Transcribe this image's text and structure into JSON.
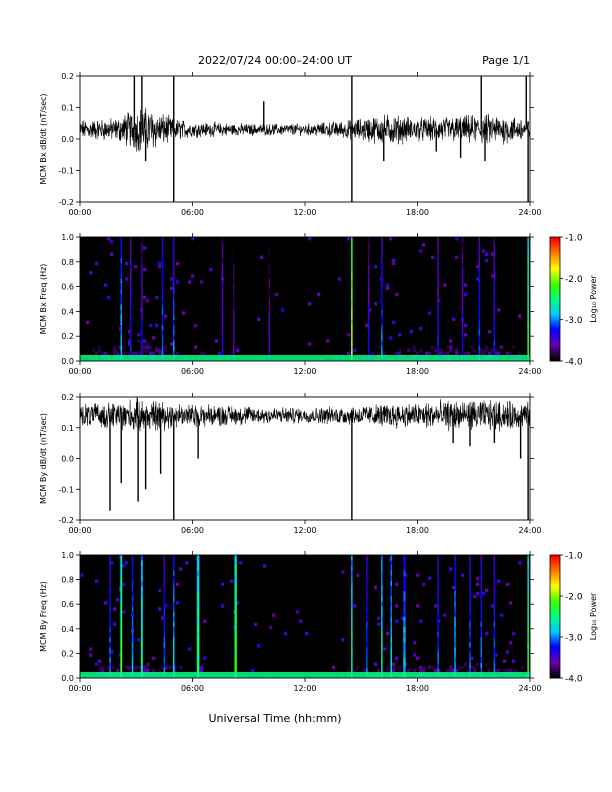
{
  "header": {
    "title": "2022/07/24  00:00–24:00 UT",
    "page": "Page 1/1"
  },
  "footer": {
    "xlabel": "Universal Time (hh:mm)"
  },
  "x_ticks": [
    "00:00",
    "06:00",
    "12:00",
    "18:00",
    "24:00"
  ],
  "colorbar": {
    "label": "Log₁₀ Power",
    "ticks": [
      "-1.0",
      "-2.0",
      "-3.0",
      "-4.0"
    ],
    "range": [
      -4.0,
      -1.0
    ],
    "colors": [
      "#000000",
      "#6a00b0",
      "#0000ff",
      "#00c8ff",
      "#00ff80",
      "#40ff00",
      "#ffff00",
      "#ff8000",
      "#ff0000"
    ]
  },
  "chart_data": [
    {
      "type": "line",
      "ylabel": "MCM Bx dB/dt (nT/sec)",
      "xlim": [
        0,
        24
      ],
      "ylim": [
        -0.2,
        0.2
      ],
      "yticks": [
        "0.2",
        "0.1",
        "0.0",
        "-0.1",
        "-0.2"
      ],
      "baseline": 0.03,
      "noise": [
        [
          0,
          0.025
        ],
        [
          2,
          0.03
        ],
        [
          2.7,
          0.05
        ],
        [
          3.3,
          0.06
        ],
        [
          4,
          0.05
        ],
        [
          5,
          0.03
        ],
        [
          6,
          0.02
        ],
        [
          9,
          0.015
        ],
        [
          12,
          0.015
        ],
        [
          14.5,
          0.025
        ],
        [
          15.5,
          0.035
        ],
        [
          16.5,
          0.04
        ],
        [
          18,
          0.03
        ],
        [
          20,
          0.035
        ],
        [
          22,
          0.04
        ],
        [
          24,
          0.03
        ]
      ],
      "spikes": [
        [
          2.9,
          0.2
        ],
        [
          3.3,
          0.2
        ],
        [
          3.5,
          -0.07
        ],
        [
          5.0,
          0.2
        ],
        [
          5.0,
          -0.2
        ],
        [
          9.8,
          0.12
        ],
        [
          14.5,
          0.2
        ],
        [
          14.5,
          -0.2
        ],
        [
          16.2,
          -0.07
        ],
        [
          19.0,
          -0.04
        ],
        [
          20.3,
          -0.06
        ],
        [
          21.4,
          0.2
        ],
        [
          21.6,
          -0.07
        ],
        [
          23.8,
          0.2
        ],
        [
          23.9,
          -0.2
        ]
      ]
    },
    {
      "type": "heatmap",
      "ylabel": "MCM Bx Freq (Hz)",
      "xlim": [
        0,
        24
      ],
      "ylim": [
        0.0,
        1.0
      ],
      "yticks": [
        "1.0",
        "0.8",
        "0.6",
        "0.4",
        "0.2",
        "0.0"
      ],
      "bands": [
        [
          2.2,
          0.07,
          -2.8
        ],
        [
          2.7,
          0.05,
          -3.2
        ],
        [
          3.3,
          0.06,
          -3.3
        ],
        [
          4.4,
          0.04,
          -3.0
        ],
        [
          5.0,
          0.05,
          -3.0
        ],
        [
          7.6,
          0.04,
          -3.3
        ],
        [
          8.2,
          0.04,
          -3.5
        ],
        [
          10.1,
          0.04,
          -3.5
        ],
        [
          14.5,
          0.06,
          -1.8
        ],
        [
          15.4,
          0.04,
          -3.3
        ],
        [
          16.1,
          0.04,
          -3.0
        ],
        [
          19.1,
          0.04,
          -3.2
        ],
        [
          20.4,
          0.04,
          -3.3
        ],
        [
          21.3,
          0.04,
          -3.1
        ],
        [
          22.1,
          0.04,
          -3.2
        ],
        [
          23.9,
          0.06,
          -2.3
        ]
      ]
    },
    {
      "type": "line",
      "ylabel": "MCM By dB/dt (nT/sec)",
      "xlim": [
        0,
        24
      ],
      "ylim": [
        -0.2,
        0.2
      ],
      "yticks": [
        "0.2",
        "0.1",
        "0.0",
        "-0.1",
        "-0.2"
      ],
      "baseline": 0.14,
      "noise": [
        [
          0,
          0.03
        ],
        [
          2,
          0.035
        ],
        [
          3,
          0.045
        ],
        [
          4,
          0.04
        ],
        [
          5,
          0.035
        ],
        [
          6,
          0.03
        ],
        [
          9,
          0.025
        ],
        [
          12,
          0.02
        ],
        [
          14.5,
          0.025
        ],
        [
          16,
          0.03
        ],
        [
          18,
          0.035
        ],
        [
          20,
          0.04
        ],
        [
          22,
          0.04
        ],
        [
          24,
          0.035
        ]
      ],
      "spikes": [
        [
          1.6,
          -0.17
        ],
        [
          2.2,
          -0.08
        ],
        [
          3.1,
          -0.14
        ],
        [
          3.5,
          -0.1
        ],
        [
          4.3,
          -0.05
        ],
        [
          5.0,
          -0.2
        ],
        [
          6.3,
          0.0
        ],
        [
          14.5,
          -0.2
        ],
        [
          19.9,
          0.05
        ],
        [
          20.8,
          0.04
        ],
        [
          22.1,
          0.05
        ],
        [
          23.5,
          0.0
        ],
        [
          23.9,
          -0.2
        ]
      ]
    },
    {
      "type": "heatmap",
      "ylabel": "MCM By Freq (Hz)",
      "xlim": [
        0,
        24
      ],
      "ylim": [
        0.0,
        1.0
      ],
      "yticks": [
        "1.0",
        "0.8",
        "0.6",
        "0.4",
        "0.2",
        "0.0"
      ],
      "bands": [
        [
          1.6,
          0.05,
          -3.0
        ],
        [
          2.2,
          0.1,
          -2.2
        ],
        [
          2.8,
          0.05,
          -2.9
        ],
        [
          3.3,
          0.1,
          -2.5
        ],
        [
          4.5,
          0.05,
          -3.0
        ],
        [
          5.0,
          0.05,
          -2.8
        ],
        [
          6.3,
          0.14,
          -2.4
        ],
        [
          8.3,
          0.12,
          -2.2
        ],
        [
          14.5,
          0.06,
          -2.5
        ],
        [
          15.3,
          0.05,
          -3.0
        ],
        [
          16.1,
          0.06,
          -2.6
        ],
        [
          16.6,
          0.08,
          -2.7
        ],
        [
          17.3,
          0.12,
          -2.8
        ],
        [
          19.1,
          0.05,
          -3.0
        ],
        [
          20.0,
          0.05,
          -2.8
        ],
        [
          20.8,
          0.05,
          -3.0
        ],
        [
          21.4,
          0.05,
          -3.0
        ],
        [
          22.1,
          0.05,
          -3.0
        ],
        [
          23.9,
          0.05,
          -2.3
        ]
      ]
    }
  ]
}
